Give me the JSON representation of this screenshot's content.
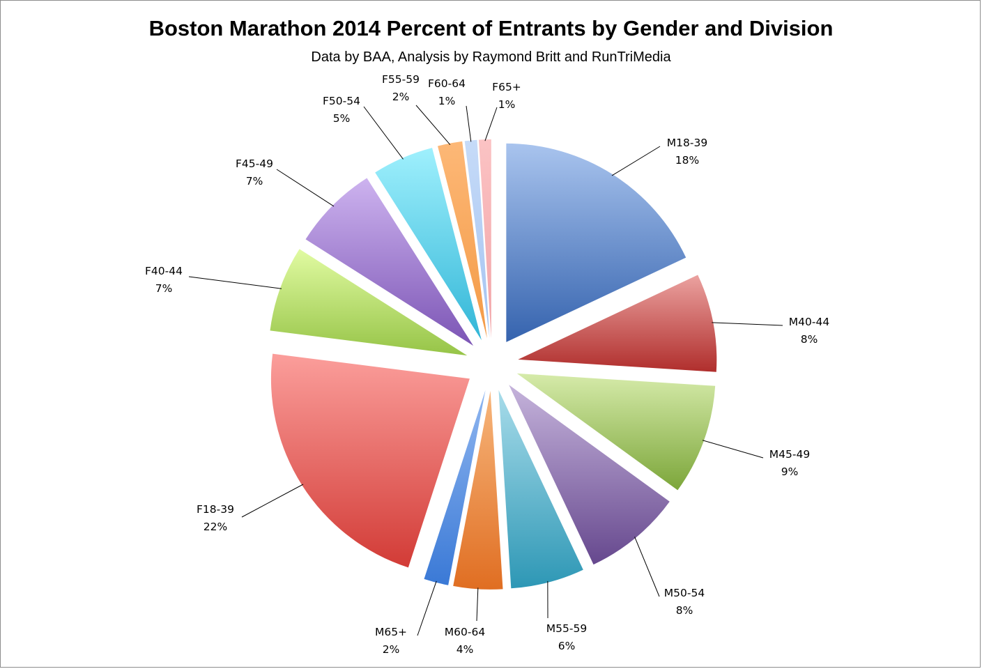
{
  "chart_data": {
    "type": "pie",
    "title": "Boston Marathon 2014 Percent of Entrants by Gender and Division",
    "subtitle": "Data by BAA, Analysis by Raymond Britt and RunTriMedia",
    "legend": "none",
    "slices": [
      {
        "label": "M18-39",
        "value": 18,
        "value_label": "18%",
        "color_light": "#a9c4ee",
        "color_dark": "#3563ae"
      },
      {
        "label": "M40-44",
        "value": 8,
        "value_label": "8%",
        "color_light": "#eba2a0",
        "color_dark": "#b02e2c"
      },
      {
        "label": "M45-49",
        "value": 9,
        "value_label": "9%",
        "color_light": "#d6ebaa",
        "color_dark": "#7ca63a"
      },
      {
        "label": "M50-54",
        "value": 8,
        "value_label": "8%",
        "color_light": "#c5b3db",
        "color_dark": "#66488e"
      },
      {
        "label": "M55-59",
        "value": 6,
        "value_label": "6%",
        "color_light": "#a8dcea",
        "color_dark": "#2d97b5"
      },
      {
        "label": "M60-64",
        "value": 4,
        "value_label": "4%",
        "color_light": "#f7b67c",
        "color_dark": "#e06e22"
      },
      {
        "label": "M65+",
        "value": 2,
        "value_label": "2%",
        "color_light": "#8fb6f0",
        "color_dark": "#3a79d6"
      },
      {
        "label": "F18-39",
        "value": 22,
        "value_label": "22%",
        "color_light": "#fb9e9b",
        "color_dark": "#d23b36"
      },
      {
        "label": "F40-44",
        "value": 7,
        "value_label": "7%",
        "color_light": "#e1fba2",
        "color_dark": "#96c447"
      },
      {
        "label": "F45-49",
        "value": 7,
        "value_label": "7%",
        "color_light": "#cdb3ef",
        "color_dark": "#7c55b5"
      },
      {
        "label": "F50-54",
        "value": 5,
        "value_label": "5%",
        "color_light": "#9ff0fd",
        "color_dark": "#32b6d7"
      },
      {
        "label": "F55-59",
        "value": 2,
        "value_label": "2%",
        "color_light": "#fdb877",
        "color_dark": "#f39a46"
      },
      {
        "label": "F60-64",
        "value": 1,
        "value_label": "1%",
        "color_light": "#c6dbf8",
        "color_dark": "#a4c3f1"
      },
      {
        "label": "F65+",
        "value": 1,
        "value_label": "1%",
        "color_light": "#fbc3c4",
        "color_dark": "#f2a3a6"
      }
    ]
  }
}
